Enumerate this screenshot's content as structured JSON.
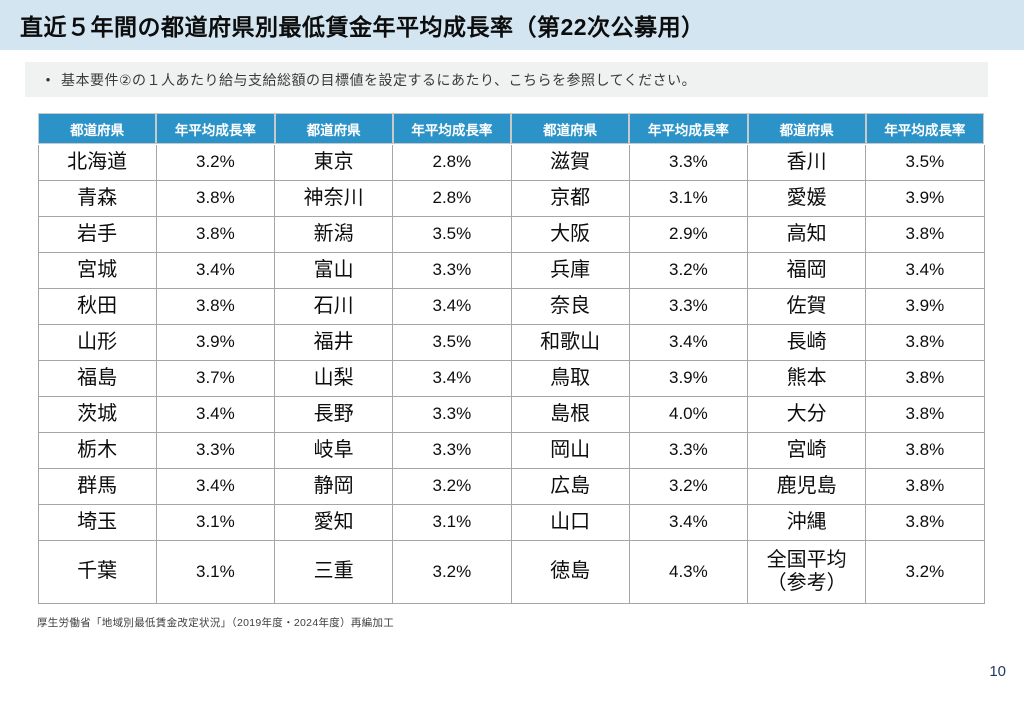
{
  "page": {
    "title": "直近５年間の都道府県別最低賃金年平均成長率（第22次公募用）",
    "note_bullet": "•",
    "note": "基本要件②の１人あたり給与支給総額の目標値を設定するにあたり、こちらを参照してください。",
    "source_note": "厚生労働省「地域別最低賃金改定状況」（2019年度・2024年度）再編加工",
    "page_number": "10"
  },
  "colors": {
    "title_bar_bg": "#D2E5F1",
    "table_header_bg": "#2B93C8",
    "note_bar_bg": "#F0F1F1",
    "table_border": "#A6A6A6",
    "page_number_color": "#1F3864"
  },
  "table": {
    "header_pref": "都道府県",
    "header_rate": "年平均成長率",
    "group_count": 4,
    "rows": [
      [
        {
          "pref": "北海道",
          "rate": "3.2%"
        },
        {
          "pref": "東京",
          "rate": "2.8%"
        },
        {
          "pref": "滋賀",
          "rate": "3.3%"
        },
        {
          "pref": "香川",
          "rate": "3.5%"
        }
      ],
      [
        {
          "pref": "青森",
          "rate": "3.8%"
        },
        {
          "pref": "神奈川",
          "rate": "2.8%"
        },
        {
          "pref": "京都",
          "rate": "3.1%"
        },
        {
          "pref": "愛媛",
          "rate": "3.9%"
        }
      ],
      [
        {
          "pref": "岩手",
          "rate": "3.8%"
        },
        {
          "pref": "新潟",
          "rate": "3.5%"
        },
        {
          "pref": "大阪",
          "rate": "2.9%"
        },
        {
          "pref": "高知",
          "rate": "3.8%"
        }
      ],
      [
        {
          "pref": "宮城",
          "rate": "3.4%"
        },
        {
          "pref": "富山",
          "rate": "3.3%"
        },
        {
          "pref": "兵庫",
          "rate": "3.2%"
        },
        {
          "pref": "福岡",
          "rate": "3.4%"
        }
      ],
      [
        {
          "pref": "秋田",
          "rate": "3.8%"
        },
        {
          "pref": "石川",
          "rate": "3.4%"
        },
        {
          "pref": "奈良",
          "rate": "3.3%"
        },
        {
          "pref": "佐賀",
          "rate": "3.9%"
        }
      ],
      [
        {
          "pref": "山形",
          "rate": "3.9%"
        },
        {
          "pref": "福井",
          "rate": "3.5%"
        },
        {
          "pref": "和歌山",
          "rate": "3.4%"
        },
        {
          "pref": "長崎",
          "rate": "3.8%"
        }
      ],
      [
        {
          "pref": "福島",
          "rate": "3.7%"
        },
        {
          "pref": "山梨",
          "rate": "3.4%"
        },
        {
          "pref": "鳥取",
          "rate": "3.9%"
        },
        {
          "pref": "熊本",
          "rate": "3.8%"
        }
      ],
      [
        {
          "pref": "茨城",
          "rate": "3.4%"
        },
        {
          "pref": "長野",
          "rate": "3.3%"
        },
        {
          "pref": "島根",
          "rate": "4.0%"
        },
        {
          "pref": "大分",
          "rate": "3.8%"
        }
      ],
      [
        {
          "pref": "栃木",
          "rate": "3.3%"
        },
        {
          "pref": "岐阜",
          "rate": "3.3%"
        },
        {
          "pref": "岡山",
          "rate": "3.3%"
        },
        {
          "pref": "宮崎",
          "rate": "3.8%"
        }
      ],
      [
        {
          "pref": "群馬",
          "rate": "3.4%"
        },
        {
          "pref": "静岡",
          "rate": "3.2%"
        },
        {
          "pref": "広島",
          "rate": "3.2%"
        },
        {
          "pref": "鹿児島",
          "rate": "3.8%"
        }
      ],
      [
        {
          "pref": "埼玉",
          "rate": "3.1%"
        },
        {
          "pref": "愛知",
          "rate": "3.1%"
        },
        {
          "pref": "山口",
          "rate": "3.4%"
        },
        {
          "pref": "沖縄",
          "rate": "3.8%"
        }
      ],
      [
        {
          "pref": "千葉",
          "rate": "3.1%"
        },
        {
          "pref": "三重",
          "rate": "3.2%"
        },
        {
          "pref": "徳島",
          "rate": "4.3%"
        },
        {
          "pref": "全国平均（参考）",
          "rate": "3.2%"
        }
      ]
    ]
  }
}
